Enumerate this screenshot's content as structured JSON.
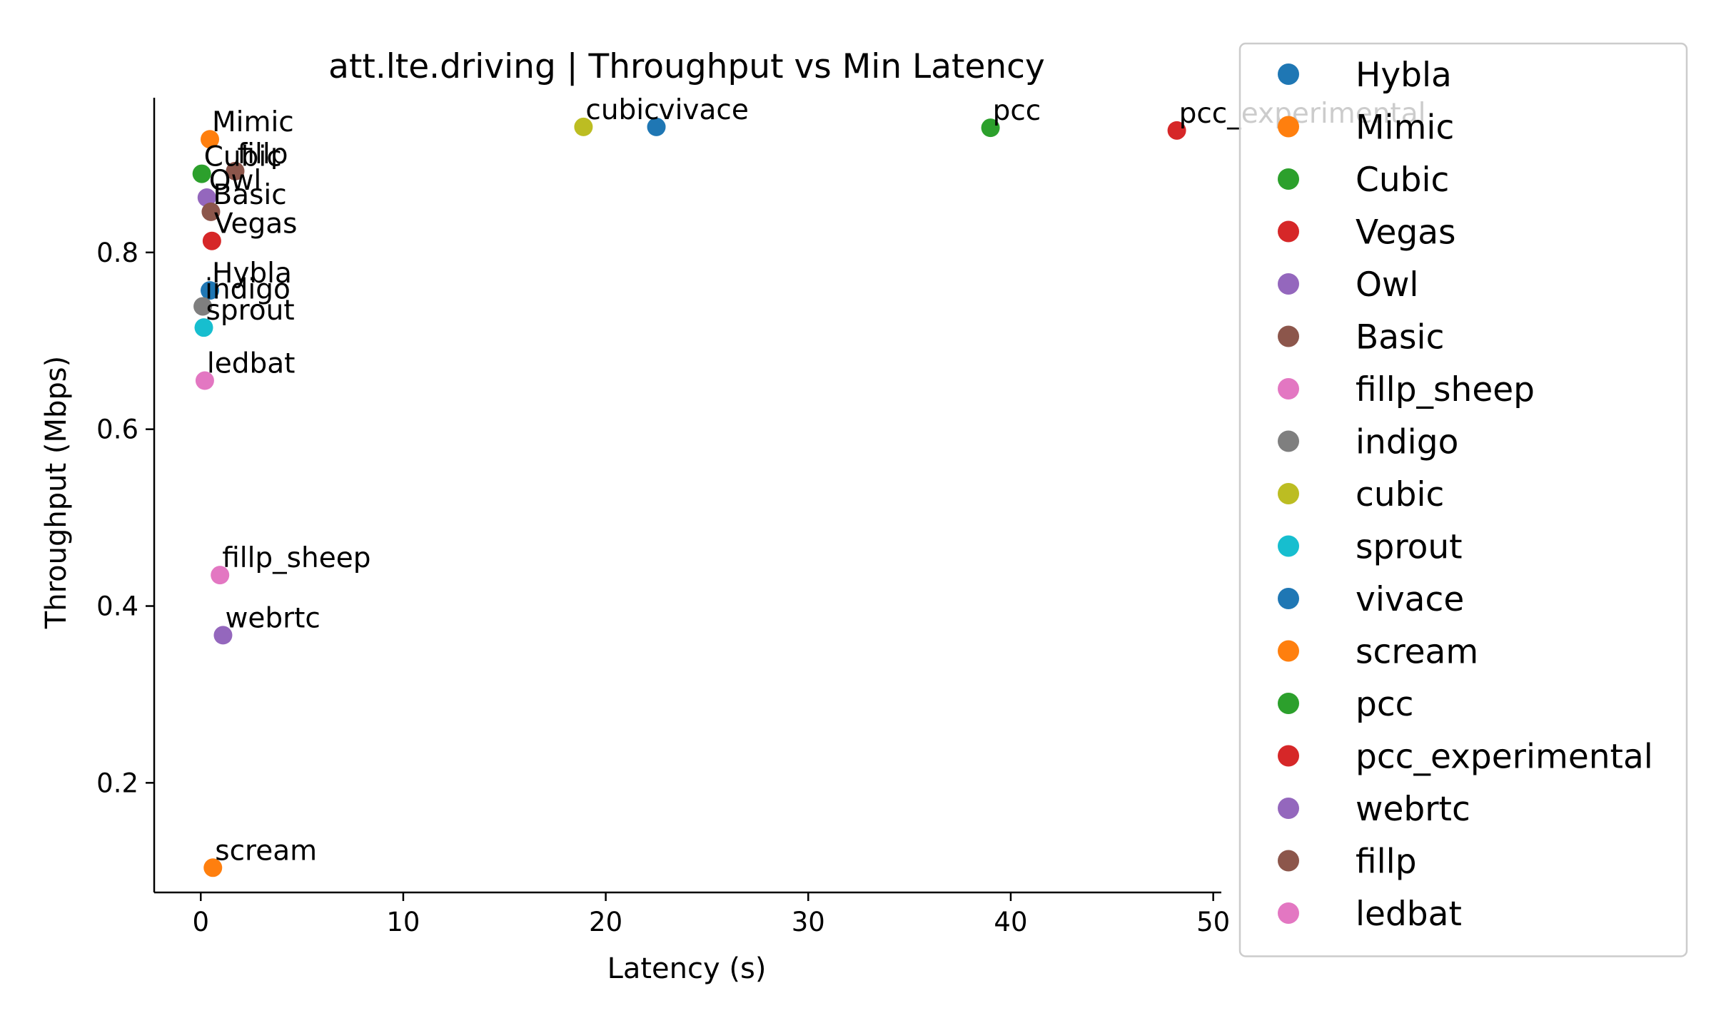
{
  "chart_data": {
    "type": "scatter",
    "title": "att.lte.driving | Throughput vs Min Latency",
    "xlabel": "Latency (s)",
    "ylabel": "Throughput (Mbps)",
    "xlim": [
      -2.3,
      50.4
    ],
    "ylim": [
      0.076,
      0.975
    ],
    "xticks": [
      0,
      10,
      20,
      30,
      40,
      50
    ],
    "yticks": [
      0.2,
      0.4,
      0.6,
      0.8
    ],
    "grid": false,
    "legend_position": "outside-right",
    "series": [
      {
        "name": "Hybla",
        "color": "#1f77b4",
        "x": 0.45,
        "y": 0.757
      },
      {
        "name": "Mimic",
        "color": "#ff7f0e",
        "x": 0.45,
        "y": 0.928
      },
      {
        "name": "Cubic",
        "color": "#2ca02c",
        "x": 0.05,
        "y": 0.889
      },
      {
        "name": "Vegas",
        "color": "#d62728",
        "x": 0.55,
        "y": 0.813
      },
      {
        "name": "Owl",
        "color": "#9467bd",
        "x": 0.3,
        "y": 0.862
      },
      {
        "name": "Basic",
        "color": "#8c564b",
        "x": 0.5,
        "y": 0.846
      },
      {
        "name": "fillp_sheep",
        "color": "#e377c2",
        "x": 0.95,
        "y": 0.435
      },
      {
        "name": "indigo",
        "color": "#7f7f7f",
        "x": 0.1,
        "y": 0.739
      },
      {
        "name": "cubic",
        "color": "#bcbd22",
        "x": 18.9,
        "y": 0.942
      },
      {
        "name": "sprout",
        "color": "#17becf",
        "x": 0.15,
        "y": 0.715
      },
      {
        "name": "vivace",
        "color": "#1f77b4",
        "x": 22.5,
        "y": 0.942
      },
      {
        "name": "scream",
        "color": "#ff7f0e",
        "x": 0.6,
        "y": 0.104
      },
      {
        "name": "pcc",
        "color": "#2ca02c",
        "x": 39.0,
        "y": 0.941
      },
      {
        "name": "pcc_experimental",
        "color": "#d62728",
        "x": 48.2,
        "y": 0.938
      },
      {
        "name": "webrtc",
        "color": "#9467bd",
        "x": 1.1,
        "y": 0.367
      },
      {
        "name": "fillp",
        "color": "#8c564b",
        "x": 1.7,
        "y": 0.892
      },
      {
        "name": "ledbat",
        "color": "#e377c2",
        "x": 0.2,
        "y": 0.655
      }
    ]
  }
}
